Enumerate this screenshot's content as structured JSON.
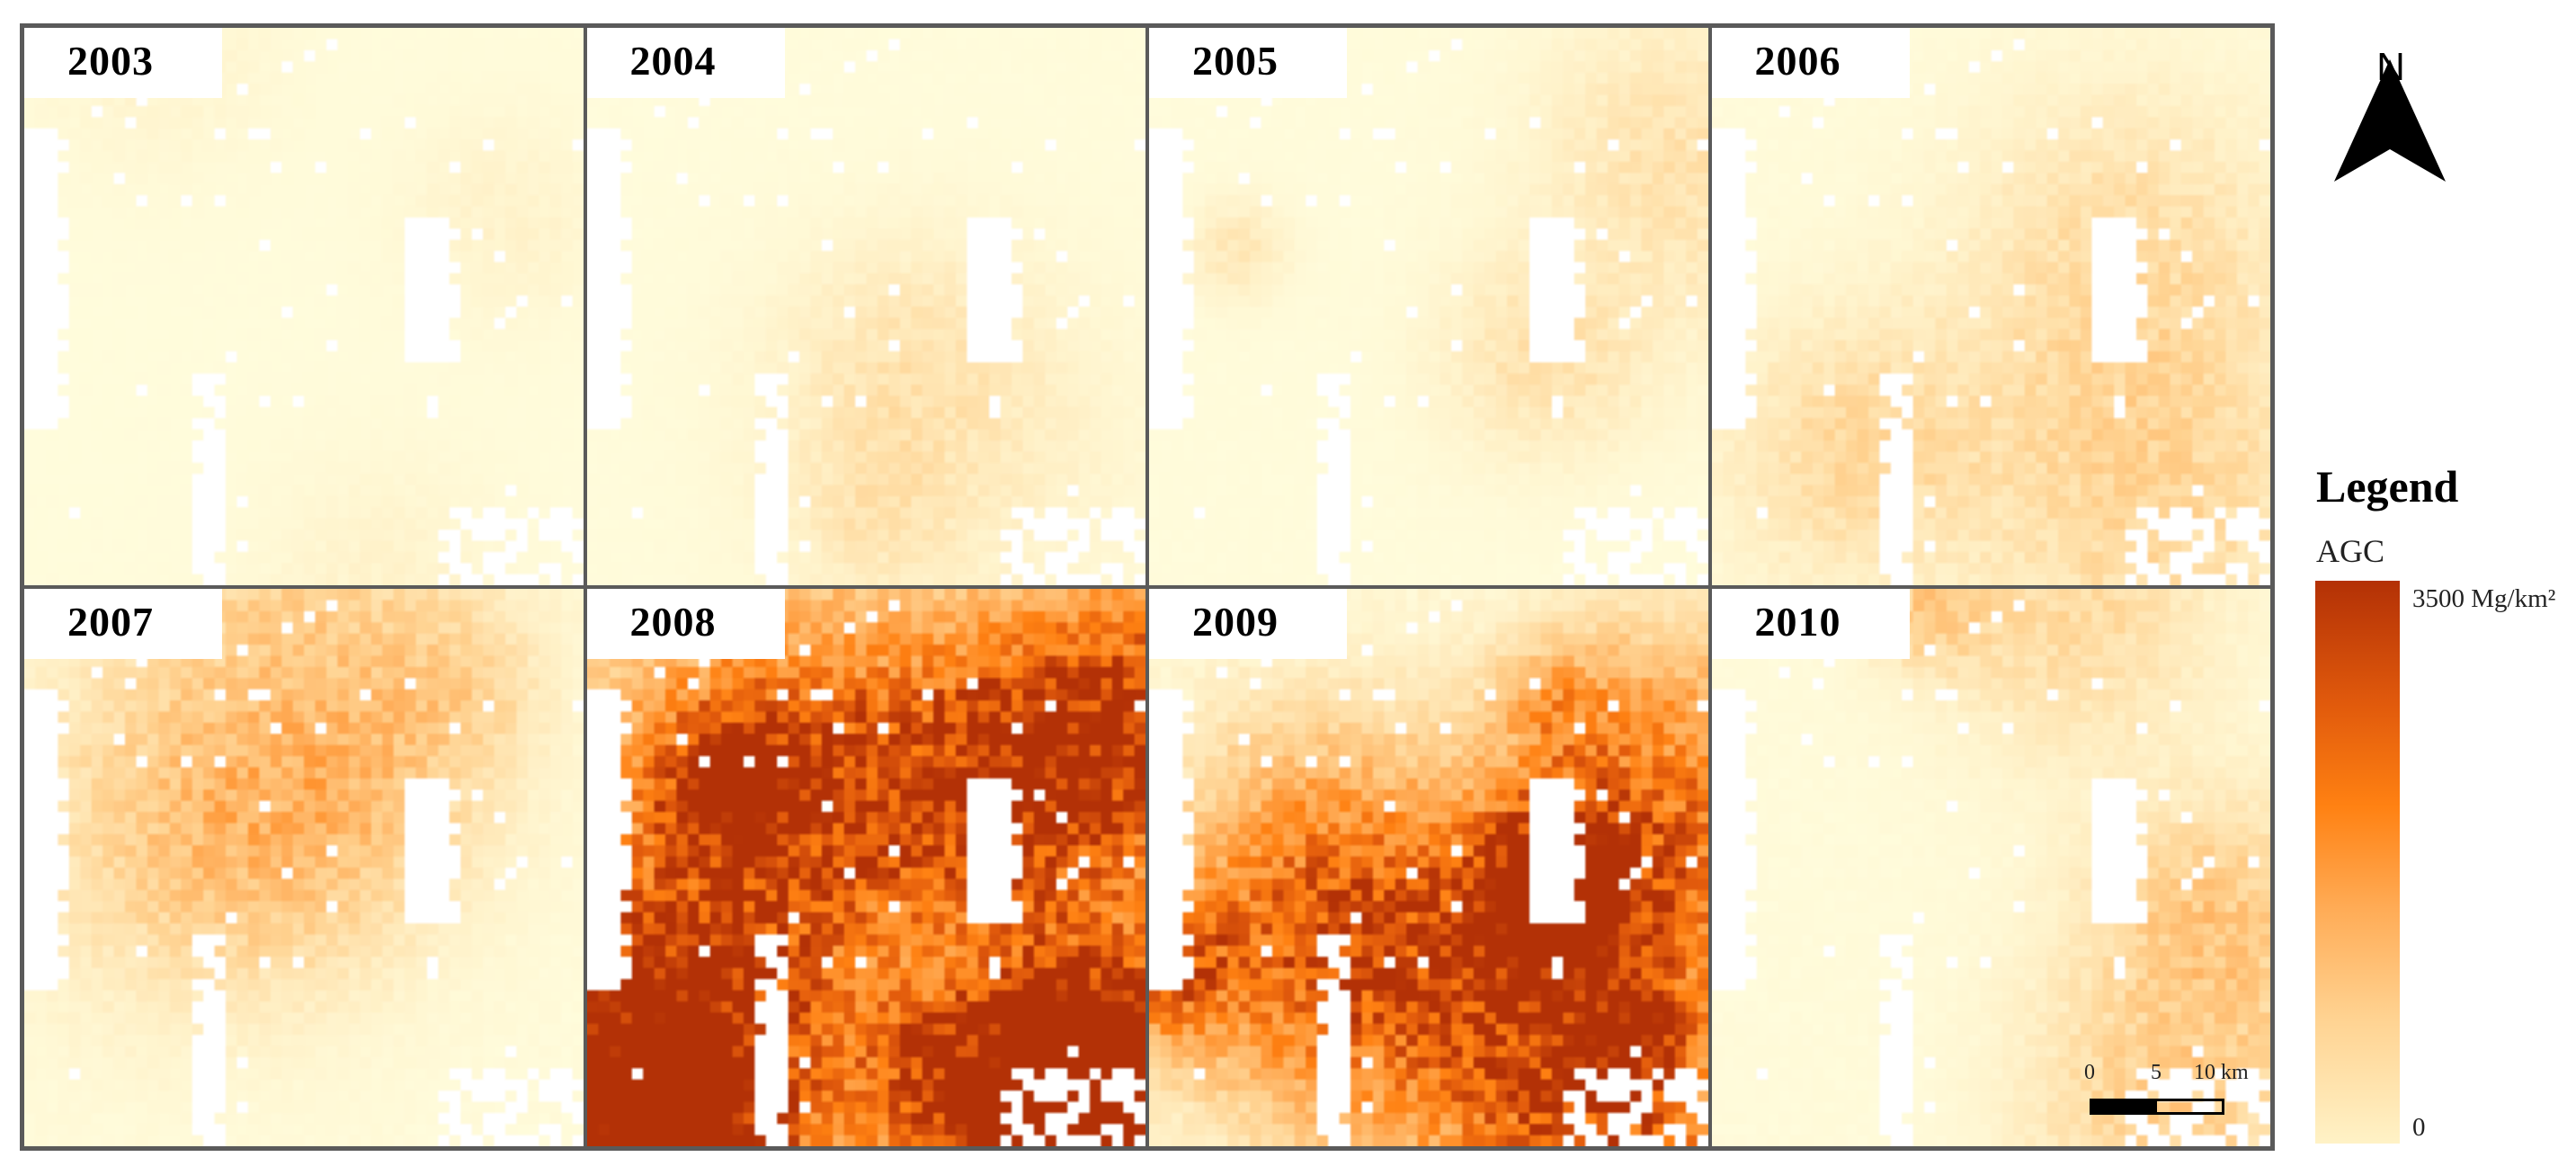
{
  "panels": [
    {
      "year": "2003",
      "intensity": 0.05
    },
    {
      "year": "2004",
      "intensity": 0.09
    },
    {
      "year": "2005",
      "intensity": 0.13
    },
    {
      "year": "2006",
      "intensity": 0.18
    },
    {
      "year": "2007",
      "intensity": 0.25
    },
    {
      "year": "2008",
      "intensity": 0.95
    },
    {
      "year": "2009",
      "intensity": 0.75
    },
    {
      "year": "2010",
      "intensity": 0.22
    }
  ],
  "north_arrow": {
    "letter": "N",
    "icon": "north-arrow-icon"
  },
  "legend": {
    "title": "Legend",
    "field": "AGC",
    "max_label": "3500 Mg/km²",
    "min_label": "0",
    "colors": [
      "#fffcdc",
      "#ffd392",
      "#ffab55",
      "#ff8112",
      "#e15a0c",
      "#b33106"
    ]
  },
  "scale_bar": {
    "tick_0": "0",
    "tick_1": "5",
    "tick_2": "10 km"
  }
}
